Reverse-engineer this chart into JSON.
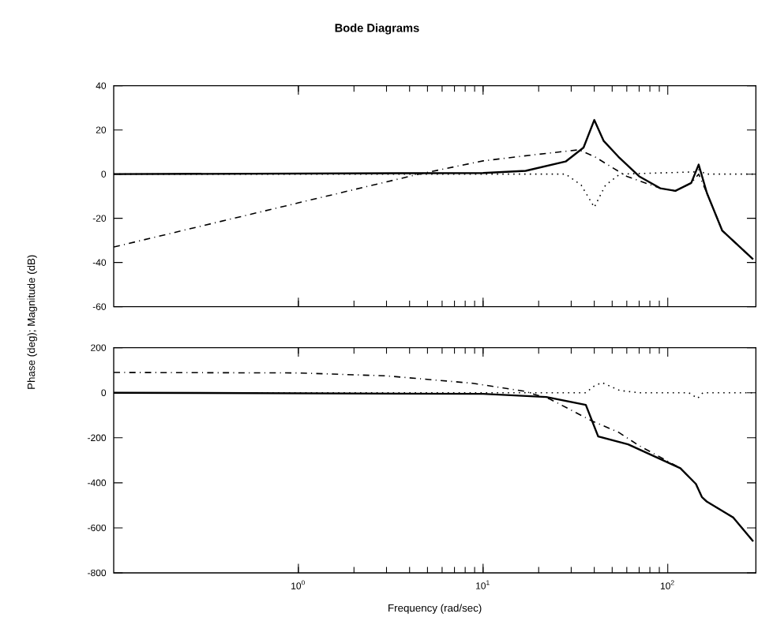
{
  "chart_data": [
    {
      "type": "line",
      "title": "Bode Diagrams",
      "ylabel": "Phase (deg); Magnitude (dB)",
      "log": "x",
      "tick_labels": "y",
      "xlim": [
        0.1,
        300
      ],
      "ylim": [
        -60,
        40
      ],
      "xticks": [
        1,
        10,
        100
      ],
      "yticks": [
        -60,
        -40,
        -20,
        0,
        20,
        40
      ],
      "series": [
        {
          "color": "#000000",
          "line_style": "solid",
          "x": [
            0.1,
            10,
            17,
            28,
            35,
            40,
            45,
            54,
            70,
            91,
            110,
            134,
            147,
            163,
            197,
            290
          ],
          "values": [
            0,
            0.5,
            1.5,
            5.7,
            12,
            24.5,
            15,
            7.9,
            -1,
            -6.4,
            -7.6,
            -4,
            4.3,
            -8.6,
            -25.5,
            -38.6
          ]
        },
        {
          "color": "#000000",
          "line_style": "dashdot",
          "x": [
            0.1,
            1,
            4.5,
            10,
            20,
            33,
            40,
            50,
            60,
            91,
            110,
            134,
            147,
            163,
            197,
            290
          ],
          "values": [
            -33,
            -13,
            0,
            6,
            9,
            11,
            8,
            3,
            -1,
            -6.4,
            -7.6,
            -4,
            0,
            -8.6,
            -25.5,
            -38.6
          ]
        },
        {
          "color": "#000000",
          "line_style": "dotted",
          "x": [
            0.1,
            28,
            34,
            40,
            46,
            55,
            140,
            148,
            160,
            290
          ],
          "values": [
            0,
            0,
            -5,
            -15,
            -5,
            0,
            1,
            2,
            0,
            0
          ]
        }
      ]
    },
    {
      "type": "line",
      "xlabel": "Frequency (rad/sec)",
      "log": "x",
      "xlim": [
        0.1,
        300
      ],
      "ylim": [
        -800,
        200
      ],
      "xticks": [
        {
          "value": 1,
          "label": "10$^{0}$"
        },
        {
          "value": 10,
          "label": "10$^{1}$"
        },
        {
          "value": 100,
          "label": "10$^{2}$"
        }
      ],
      "yticks": [
        -800,
        -600,
        -400,
        -200,
        0,
        200
      ],
      "series": [
        {
          "color": "#000000",
          "line_style": "solid",
          "x": [
            0.1,
            10,
            22,
            36,
            42,
            61,
            117,
            142,
            153,
            163,
            226,
            290
          ],
          "values": [
            0,
            -5,
            -19,
            -54,
            -194,
            -229,
            -335,
            -405,
            -463,
            -484,
            -554,
            -660
          ]
        },
        {
          "color": "#000000",
          "line_style": "dashdot",
          "x": [
            0.1,
            1,
            3,
            8.8,
            16.7,
            23,
            39,
            54,
            70,
            117,
            142,
            153,
            163,
            226,
            290
          ],
          "values": [
            90,
            88,
            75,
            42,
            7,
            -28,
            -126,
            -175,
            -235,
            -335,
            -405,
            -463,
            -484,
            -554,
            -660
          ]
        },
        {
          "color": "#000000",
          "line_style": "dotted",
          "x": [
            0.1,
            36,
            40,
            44,
            55,
            70,
            130,
            145,
            155,
            290
          ],
          "values": [
            0,
            0,
            30,
            45,
            10,
            0,
            0,
            -25,
            0,
            0
          ]
        }
      ]
    }
  ]
}
